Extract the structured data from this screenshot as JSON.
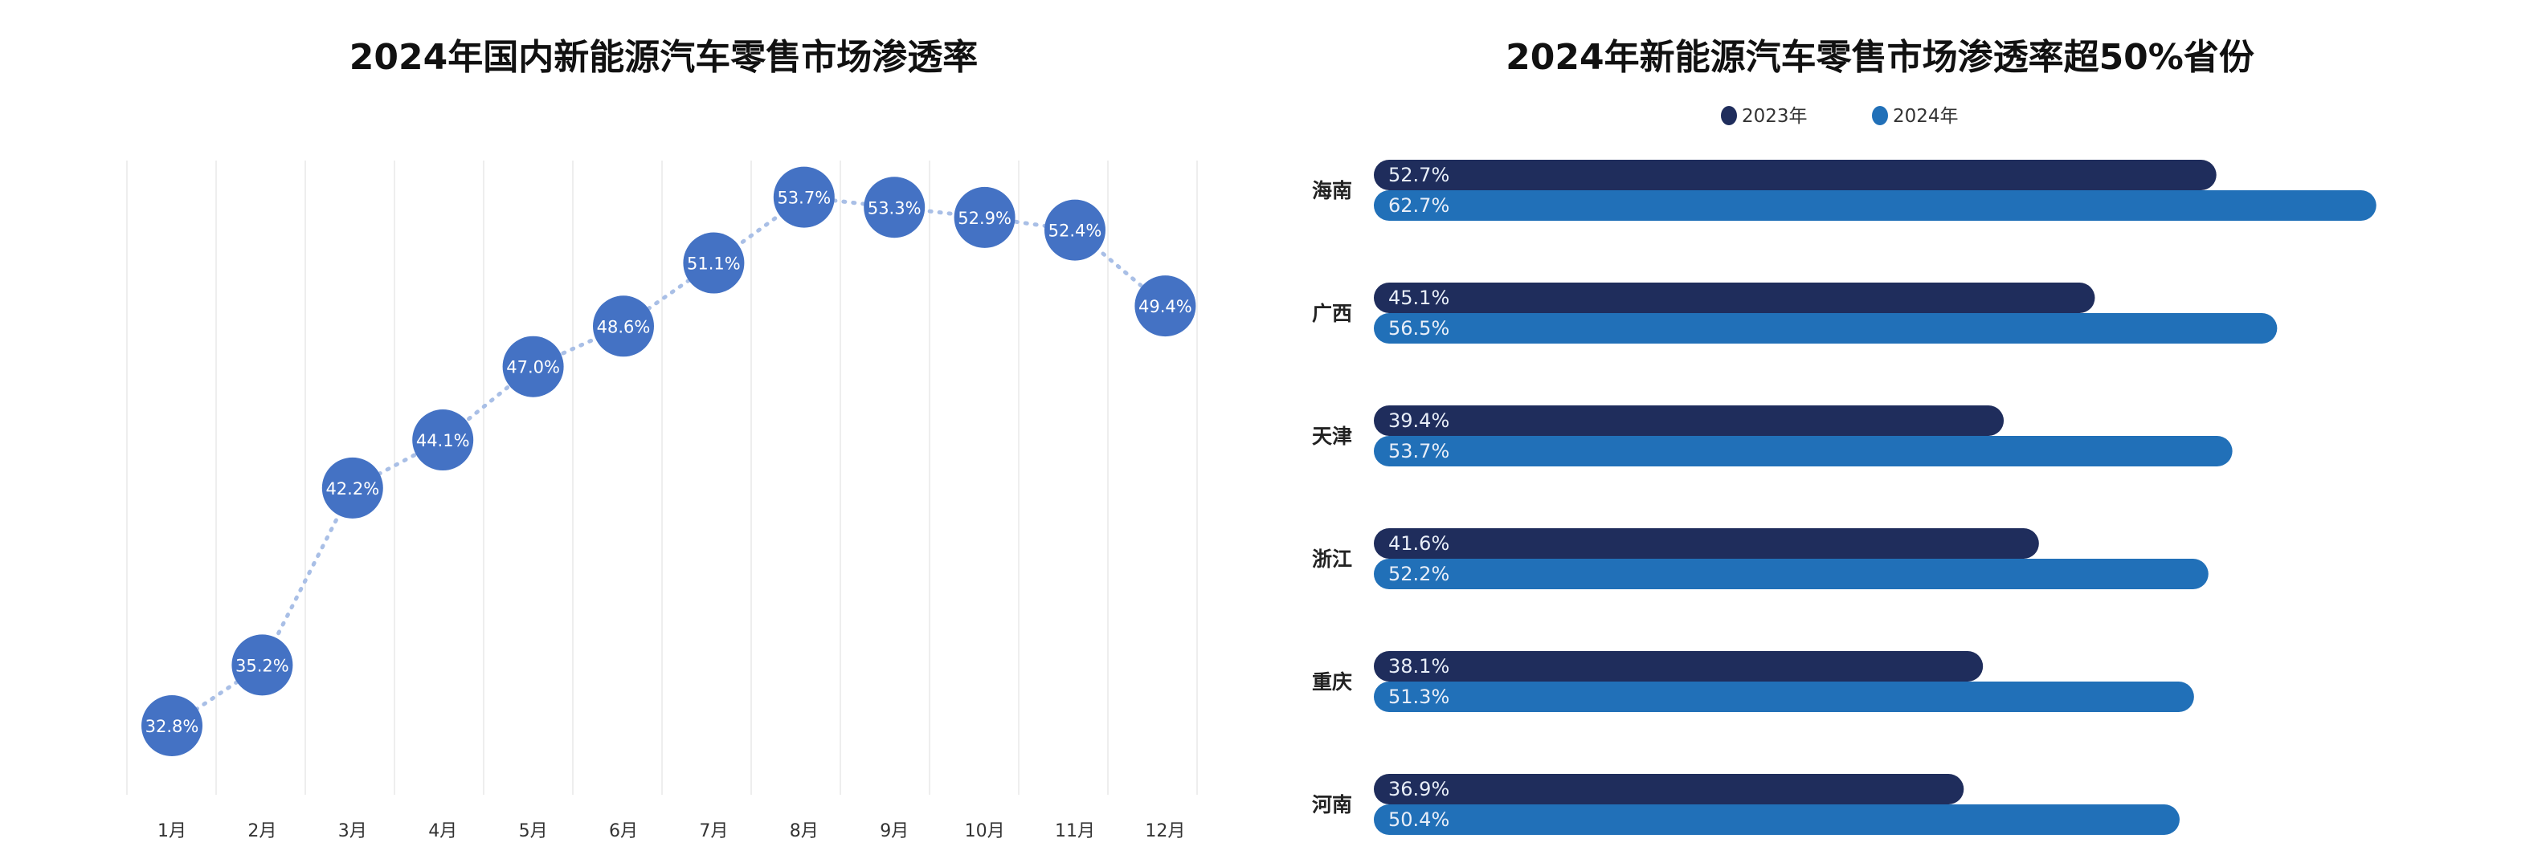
{
  "chart_data": [
    {
      "type": "line",
      "title": "2024年国内新能源汽车零售市场渗透率",
      "categories": [
        "1月",
        "2月",
        "3月",
        "4月",
        "5月",
        "6月",
        "7月",
        "8月",
        "9月",
        "10月",
        "11月",
        "12月"
      ],
      "values": [
        32.8,
        35.2,
        42.2,
        44.1,
        47.0,
        48.6,
        51.1,
        53.7,
        53.3,
        52.9,
        52.4,
        49.4
      ],
      "labels": [
        "32.8%",
        "35.2%",
        "42.2%",
        "44.1%",
        "47.0%",
        "48.6%",
        "51.1%",
        "53.7%",
        "53.3%",
        "52.9%",
        "52.4%",
        "49.4%"
      ],
      "unit": "%",
      "grid": "vertical",
      "colors": {
        "marker": "#4472c4",
        "line": "#a9bfe6"
      }
    },
    {
      "type": "bar",
      "orientation": "horizontal",
      "title": "2024年新能源汽车零售市场渗透率超50%省份",
      "categories": [
        "海南",
        "广西",
        "天津",
        "浙江",
        "重庆",
        "河南"
      ],
      "series": [
        {
          "name": "2023年",
          "values": [
            52.7,
            45.1,
            39.4,
            41.6,
            38.1,
            36.9
          ],
          "labels": [
            "52.7%",
            "45.1%",
            "39.4%",
            "41.6%",
            "38.1%",
            "36.9%"
          ],
          "color": "#1f2d5c"
        },
        {
          "name": "2024年",
          "values": [
            62.7,
            56.5,
            53.7,
            52.2,
            51.3,
            50.4
          ],
          "labels": [
            "62.7%",
            "56.5%",
            "53.7%",
            "52.2%",
            "51.3%",
            "50.4%"
          ],
          "color": "#2170b8"
        }
      ],
      "unit": "%",
      "legend": "top-center"
    }
  ]
}
